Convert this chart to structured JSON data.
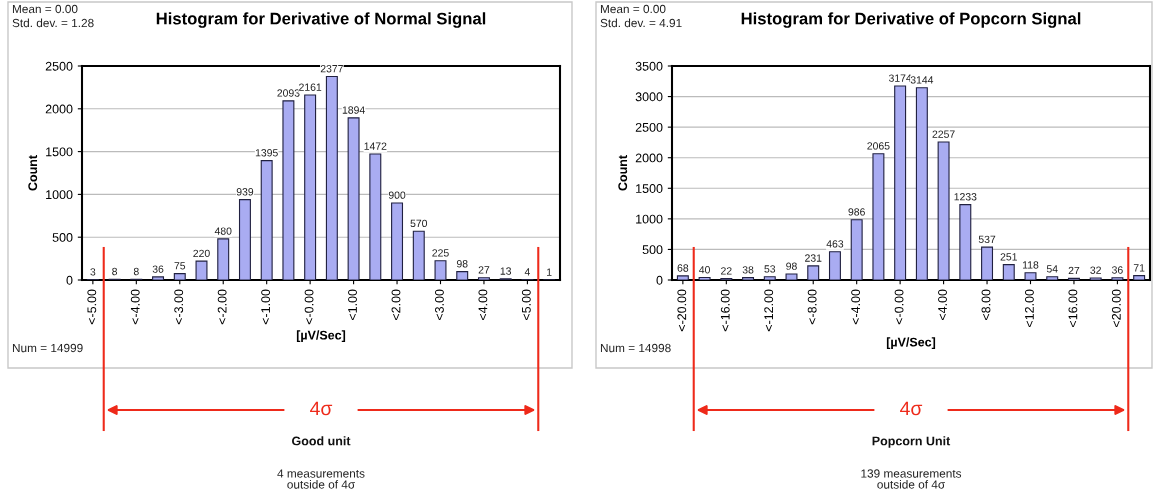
{
  "chart_data": [
    {
      "type": "bar",
      "title": "Histogram for Derivative of Normal Signal",
      "xlabel": "[µV/Sec]",
      "ylabel": "Count",
      "categories": [
        "<-5.00",
        null,
        "<-4.00",
        null,
        "<-3.00",
        null,
        "<-2.00",
        null,
        "<-1.00",
        null,
        "<-0.00",
        null,
        "<1.00",
        null,
        "<2.00",
        null,
        "<3.00",
        null,
        "<4.00",
        null,
        "<5.00",
        null
      ],
      "values": [
        3,
        8,
        8,
        36,
        75,
        220,
        480,
        939,
        1395,
        2093,
        2161,
        2377,
        1894,
        1472,
        900,
        570,
        225,
        98,
        27,
        13,
        4,
        1
      ],
      "color": "#a9acf2",
      "ylim": [
        0,
        2500
      ],
      "yticks": [
        0,
        500,
        1000,
        1500,
        2000,
        2500
      ],
      "grid": "y",
      "data_labels": true,
      "annotations": [
        "Mean = 0.00",
        "Std. dev. = 1.28",
        "Num = 14999",
        "4σ",
        "Good unit",
        "4 measurements\noutside of 4σ"
      ]
    },
    {
      "type": "bar",
      "title": "Histogram for Derivative of Popcorn Signal",
      "xlabel": "[µV/Sec]",
      "ylabel": "Count",
      "categories": [
        "<-20.00",
        null,
        "<-16.00",
        null,
        "<-12.00",
        null,
        "<-8.00",
        null,
        "<-4.00",
        null,
        "<-0.00",
        null,
        "<4.00",
        null,
        "<8.00",
        null,
        "<12.00",
        null,
        "<16.00",
        null,
        "<20.00",
        null
      ],
      "values": [
        68,
        40,
        22,
        38,
        53,
        98,
        231,
        463,
        986,
        2065,
        3174,
        3144,
        2257,
        1233,
        537,
        251,
        118,
        54,
        27,
        32,
        36,
        71
      ],
      "color": "#a9acf2",
      "ylim": [
        0,
        3500
      ],
      "yticks": [
        0,
        500,
        1000,
        1500,
        2000,
        2500,
        3000,
        3500
      ],
      "grid": "y",
      "data_labels": true,
      "annotations": [
        "Mean = 0.00",
        "Std. dev. = 4.91",
        "Num = 14998",
        "4σ",
        "Popcorn Unit",
        "139 measurements\noutside of 4σ"
      ]
    }
  ]
}
